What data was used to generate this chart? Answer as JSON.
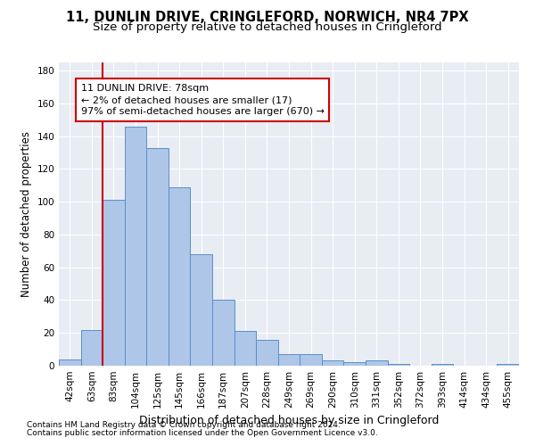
{
  "title1": "11, DUNLIN DRIVE, CRINGLEFORD, NORWICH, NR4 7PX",
  "title2": "Size of property relative to detached houses in Cringleford",
  "xlabel": "Distribution of detached houses by size in Cringleford",
  "ylabel": "Number of detached properties",
  "categories": [
    "42sqm",
    "63sqm",
    "83sqm",
    "104sqm",
    "125sqm",
    "145sqm",
    "166sqm",
    "187sqm",
    "207sqm",
    "228sqm",
    "249sqm",
    "269sqm",
    "290sqm",
    "310sqm",
    "331sqm",
    "352sqm",
    "372sqm",
    "393sqm",
    "414sqm",
    "434sqm",
    "455sqm"
  ],
  "values": [
    4,
    22,
    101,
    146,
    133,
    109,
    68,
    40,
    21,
    16,
    7,
    7,
    3,
    2,
    3,
    1,
    0,
    1,
    0,
    0,
    1
  ],
  "bar_color": "#aec6e8",
  "bar_edge_color": "#5b8fc9",
  "vline_color": "#cc0000",
  "vline_x": 1.5,
  "annotation_line1": "11 DUNLIN DRIVE: 78sqm",
  "annotation_line2": "← 2% of detached houses are smaller (17)",
  "annotation_line3": "97% of semi-detached houses are larger (670) →",
  "box_edge_color": "#cc0000",
  "ylim": [
    0,
    185
  ],
  "yticks": [
    0,
    20,
    40,
    60,
    80,
    100,
    120,
    140,
    160,
    180
  ],
  "background_color": "#e8edf4",
  "grid_color": "#ffffff",
  "footnote1": "Contains HM Land Registry data © Crown copyright and database right 2024.",
  "footnote2": "Contains public sector information licensed under the Open Government Licence v3.0.",
  "title1_fontsize": 10.5,
  "title2_fontsize": 9.5,
  "xlabel_fontsize": 9,
  "ylabel_fontsize": 8.5,
  "tick_fontsize": 7.5,
  "annot_fontsize": 8,
  "footnote_fontsize": 6.5
}
